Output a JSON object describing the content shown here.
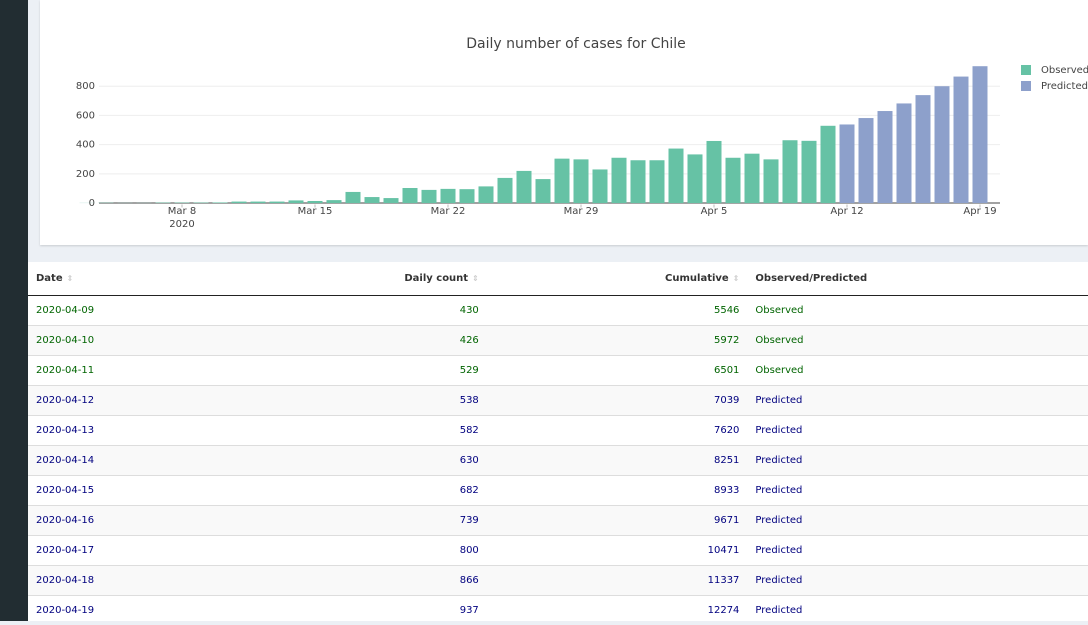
{
  "chart_data": {
    "type": "bar",
    "title": "Daily number of cases for Chile",
    "x": [
      "2020-03-03",
      "2020-03-04",
      "2020-03-05",
      "2020-03-06",
      "2020-03-07",
      "2020-03-08",
      "2020-03-09",
      "2020-03-10",
      "2020-03-11",
      "2020-03-12",
      "2020-03-13",
      "2020-03-14",
      "2020-03-15",
      "2020-03-16",
      "2020-03-17",
      "2020-03-18",
      "2020-03-19",
      "2020-03-20",
      "2020-03-21",
      "2020-03-22",
      "2020-03-23",
      "2020-03-24",
      "2020-03-25",
      "2020-03-26",
      "2020-03-27",
      "2020-03-28",
      "2020-03-29",
      "2020-03-30",
      "2020-03-31",
      "2020-04-01",
      "2020-04-02",
      "2020-04-03",
      "2020-04-04",
      "2020-04-05",
      "2020-04-06",
      "2020-04-07",
      "2020-04-08",
      "2020-04-09",
      "2020-04-10",
      "2020-04-11",
      "2020-04-12",
      "2020-04-13",
      "2020-04-14",
      "2020-04-15",
      "2020-04-16",
      "2020-04-17",
      "2020-04-18",
      "2020-04-19"
    ],
    "series": [
      {
        "name": "Observed",
        "color": "#66c2a5",
        "values": [
          1,
          2,
          1,
          1,
          3,
          3,
          3,
          4,
          10,
          10,
          10,
          18,
          14,
          20,
          76,
          41,
          34,
          103,
          90,
          97,
          95,
          114,
          172,
          220,
          164,
          304,
          299,
          230,
          310,
          293,
          293,
          373,
          333,
          425,
          310,
          338,
          299,
          430,
          426,
          529,
          null,
          null,
          null,
          null,
          null,
          null,
          null,
          null
        ]
      },
      {
        "name": "Predicted",
        "color": "#8da0cb",
        "values": [
          null,
          null,
          null,
          null,
          null,
          null,
          null,
          null,
          null,
          null,
          null,
          null,
          null,
          null,
          null,
          null,
          null,
          null,
          null,
          null,
          null,
          null,
          null,
          null,
          null,
          null,
          null,
          null,
          null,
          null,
          null,
          null,
          null,
          null,
          null,
          null,
          null,
          null,
          null,
          null,
          538,
          582,
          630,
          682,
          739,
          800,
          866,
          937
        ]
      }
    ],
    "xticks": [
      {
        "value": "2020-03-08",
        "label": "Mar 8"
      },
      {
        "value": "2020-03-15",
        "label": "Mar 15"
      },
      {
        "value": "2020-03-22",
        "label": "Mar 22"
      },
      {
        "value": "2020-03-29",
        "label": "Mar 29"
      },
      {
        "value": "2020-04-05",
        "label": "Apr 5"
      },
      {
        "value": "2020-04-12",
        "label": "Apr 12"
      },
      {
        "value": "2020-04-19",
        "label": "Apr 19"
      }
    ],
    "x_year_label": "2020",
    "ylim": [
      -10,
      1000
    ],
    "yticks": [
      0,
      200,
      400,
      600,
      800
    ],
    "grid": true
  },
  "table": {
    "headers": [
      "Date",
      "Daily count",
      "Cumulative",
      "Observed/Predicted"
    ],
    "status_colors": {
      "Observed": "#006400",
      "Predicted": "#00007f"
    },
    "rows": [
      [
        "2020-04-09",
        430,
        5546,
        "Observed"
      ],
      [
        "2020-04-10",
        426,
        5972,
        "Observed"
      ],
      [
        "2020-04-11",
        529,
        6501,
        "Observed"
      ],
      [
        "2020-04-12",
        538,
        7039,
        "Predicted"
      ],
      [
        "2020-04-13",
        582,
        7620,
        "Predicted"
      ],
      [
        "2020-04-14",
        630,
        8251,
        "Predicted"
      ],
      [
        "2020-04-15",
        682,
        8933,
        "Predicted"
      ],
      [
        "2020-04-16",
        739,
        9671,
        "Predicted"
      ],
      [
        "2020-04-17",
        800,
        10471,
        "Predicted"
      ],
      [
        "2020-04-18",
        866,
        11337,
        "Predicted"
      ],
      [
        "2020-04-19",
        937,
        12274,
        "Predicted"
      ]
    ]
  }
}
